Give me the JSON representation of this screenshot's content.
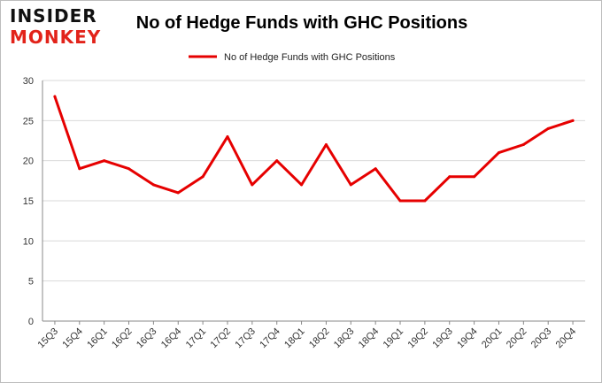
{
  "logo": {
    "line1": "INSIDER",
    "line2": "MONKEY"
  },
  "chart_data": {
    "type": "line",
    "title": "No of Hedge Funds with GHC Positions",
    "xlabel": "",
    "ylabel": "",
    "categories": [
      "15Q3",
      "15Q4",
      "16Q1",
      "16Q2",
      "16Q3",
      "16Q4",
      "17Q1",
      "17Q2",
      "17Q3",
      "17Q4",
      "18Q1",
      "18Q2",
      "18Q3",
      "18Q4",
      "19Q1",
      "19Q2",
      "19Q3",
      "19Q4",
      "20Q1",
      "20Q2",
      "20Q3",
      "20Q4"
    ],
    "series": [
      {
        "name": "No of Hedge Funds with GHC Positions",
        "values": [
          28,
          19,
          20,
          19,
          17,
          16,
          18,
          23,
          17,
          20,
          17,
          22,
          17,
          19,
          15,
          15,
          18,
          18,
          21,
          22,
          24,
          25
        ],
        "color": "#e60000"
      }
    ],
    "ylim": [
      0,
      30
    ],
    "yticks": [
      0,
      5,
      10,
      15,
      20,
      25,
      30
    ],
    "grid": true,
    "legend_position": "top-center"
  }
}
